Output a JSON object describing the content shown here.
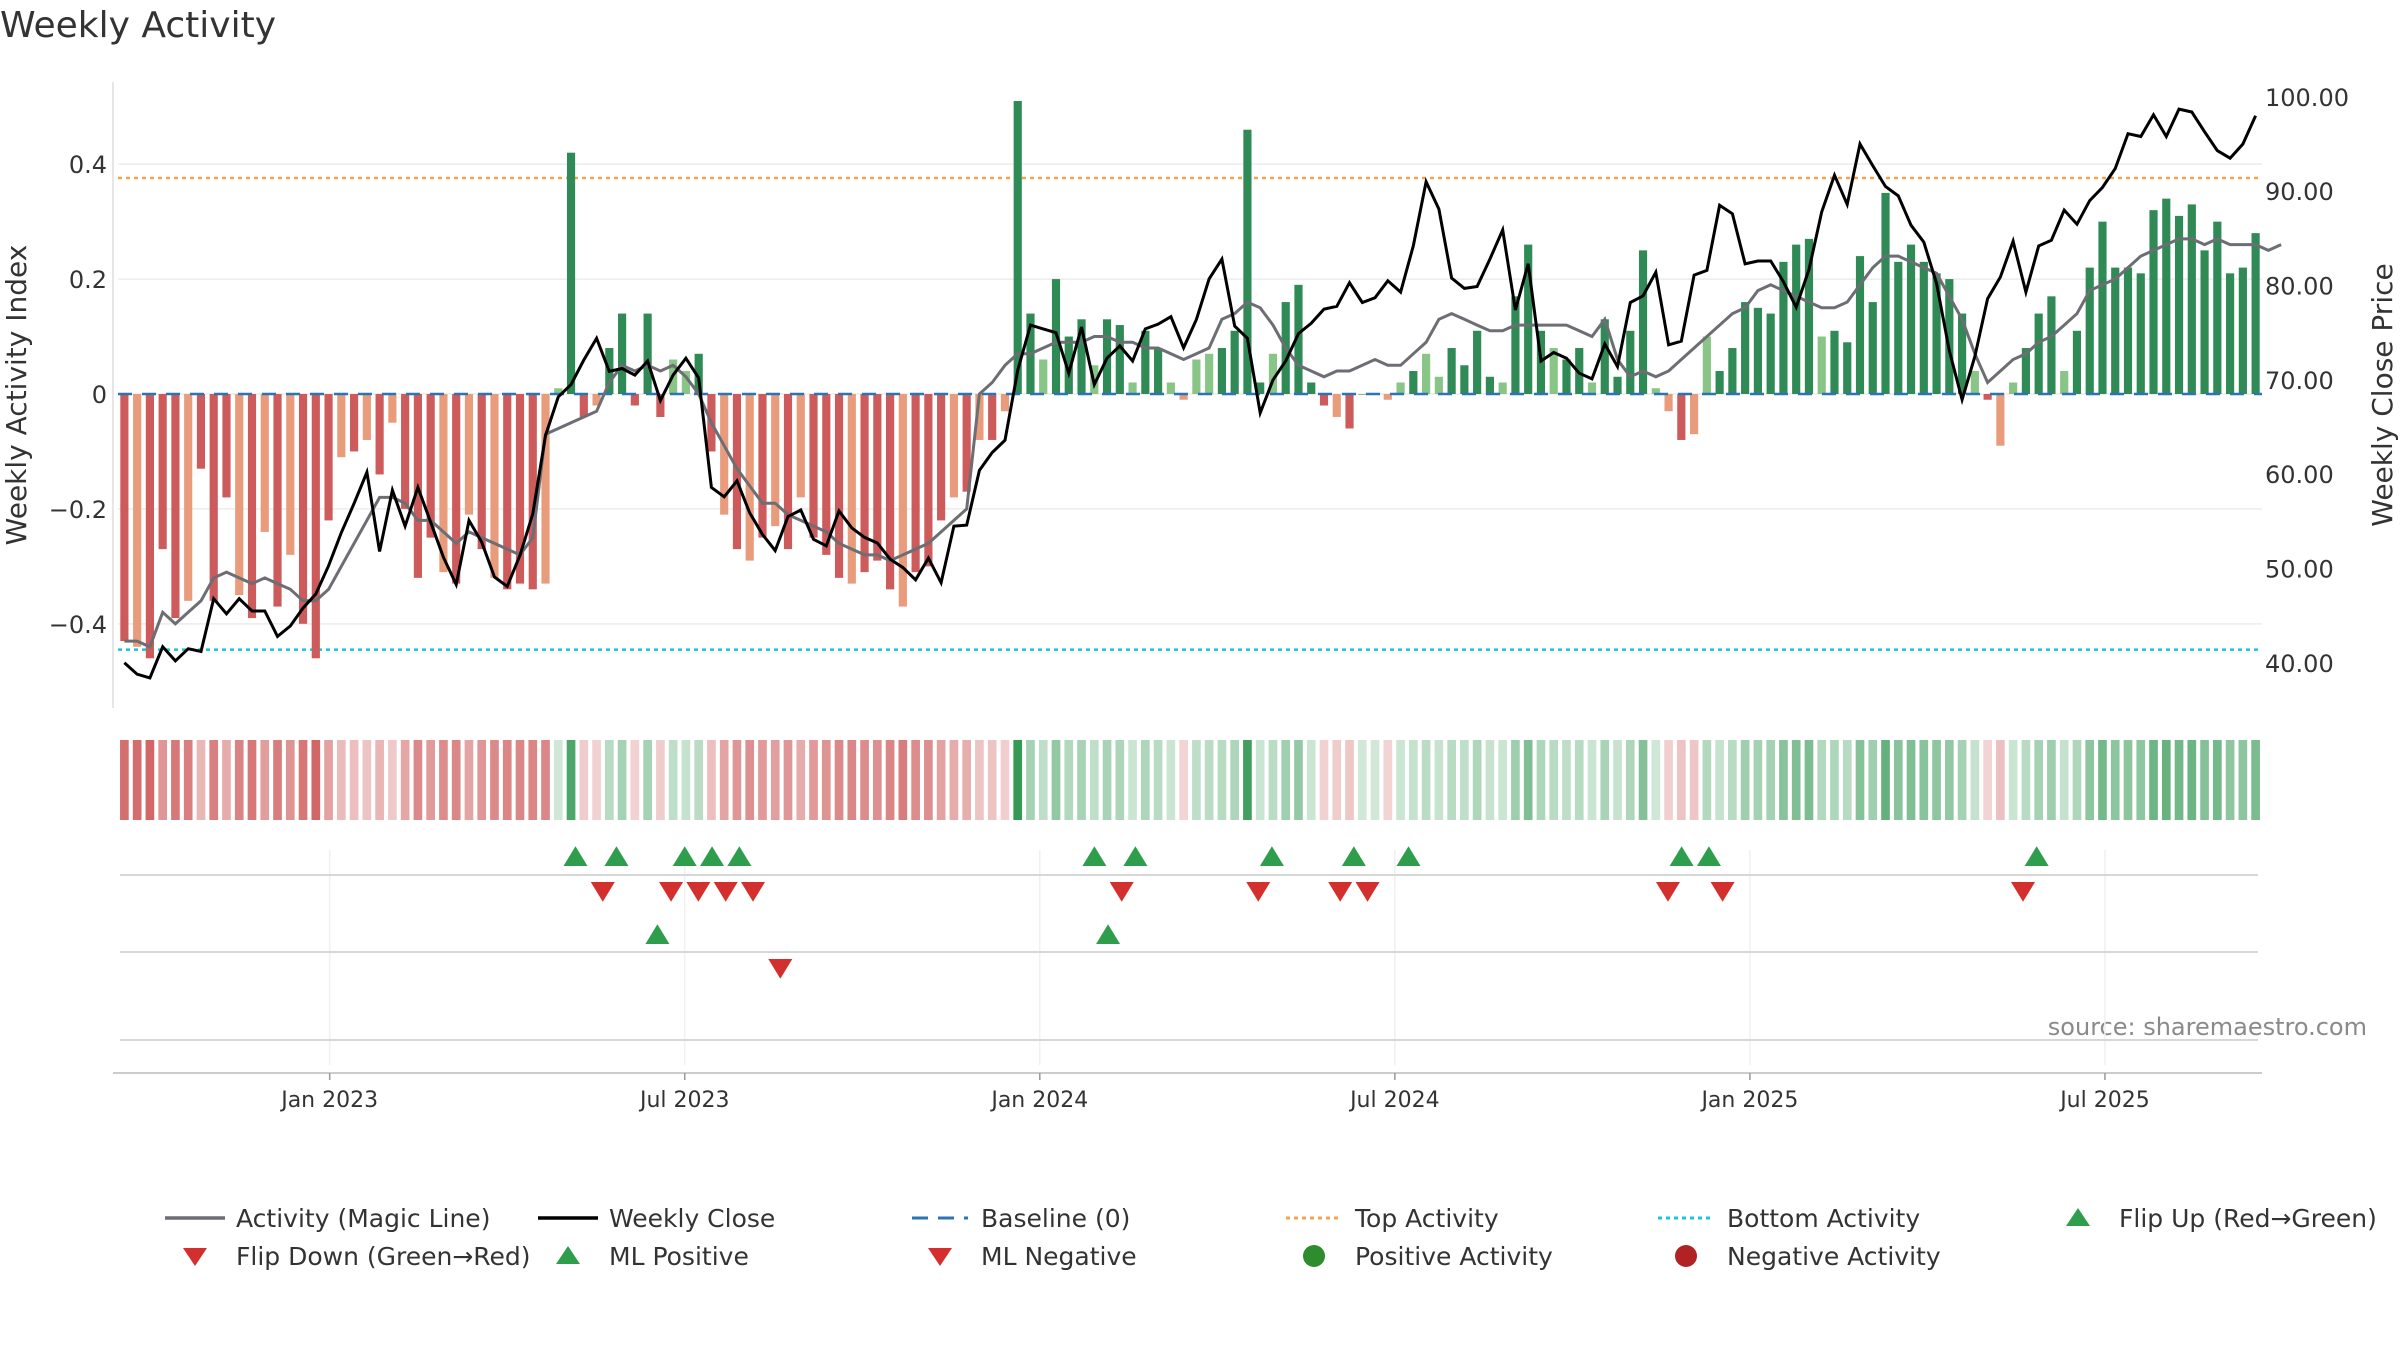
{
  "chart_data": {
    "type": "bar",
    "title": "Weekly Activity",
    "ylabel": "Weekly Activity Index",
    "y2label": "Weekly Close Price",
    "ylim": [
      -0.55,
      0.55
    ],
    "y2lim": [
      35,
      102
    ],
    "yticks": [
      {
        "v": 0.4,
        "t": "0.4"
      },
      {
        "v": 0.2,
        "t": "0.2"
      },
      {
        "v": 0,
        "t": "0"
      },
      {
        "v": -0.2,
        "t": "−0.2"
      },
      {
        "v": -0.4,
        "t": "−0.4"
      }
    ],
    "y2ticks": [
      "100.00",
      "90.00",
      "80.00",
      "70.00",
      "60.00",
      "50.00",
      "40.00"
    ],
    "xticks": [
      {
        "week": 15,
        "label": "Jan 2023"
      },
      {
        "week": 41,
        "label": "Jul 2023"
      },
      {
        "week": 67,
        "label": "Jan 2024"
      },
      {
        "week": 93,
        "label": "Jul 2024"
      },
      {
        "week": 119,
        "label": "Jan 2025"
      },
      {
        "week": 145,
        "label": "Jul 2025"
      }
    ],
    "x_weeks": 157,
    "top_activity": 0.376,
    "bottom_activity": -0.445,
    "baseline": 0,
    "activity": [
      -0.43,
      -0.44,
      -0.46,
      -0.27,
      -0.39,
      -0.36,
      -0.13,
      -0.36,
      -0.18,
      -0.35,
      -0.39,
      -0.24,
      -0.37,
      -0.28,
      -0.4,
      -0.46,
      -0.22,
      -0.11,
      -0.1,
      -0.08,
      -0.14,
      -0.05,
      -0.2,
      -0.32,
      -0.25,
      -0.31,
      -0.33,
      -0.21,
      -0.27,
      -0.32,
      -0.34,
      -0.33,
      -0.34,
      -0.33,
      0.01,
      0.42,
      -0.04,
      -0.02,
      0.08,
      0.14,
      -0.02,
      0.14,
      -0.04,
      0.06,
      0.04,
      0.07,
      -0.1,
      -0.21,
      -0.27,
      -0.29,
      -0.25,
      -0.23,
      -0.27,
      -0.18,
      -0.25,
      -0.28,
      -0.32,
      -0.33,
      -0.31,
      -0.29,
      -0.34,
      -0.37,
      -0.31,
      -0.3,
      -0.22,
      -0.18,
      -0.17,
      -0.08,
      -0.08,
      -0.03,
      0.51,
      0.14,
      0.06,
      0.2,
      0.1,
      0.13,
      0.05,
      0.13,
      0.12,
      0.02,
      0.11,
      0.08,
      0.02,
      -0.01,
      0.06,
      0.07,
      0.08,
      0.11,
      0.46,
      0.02,
      0.07,
      0.16,
      0.19,
      0.02,
      -0.02,
      -0.04,
      -0.06,
      0.0,
      0.0,
      -0.01,
      0.02,
      0.04,
      0.07,
      0.03,
      0.08,
      0.05,
      0.11,
      0.03,
      0.02,
      0.17,
      0.26,
      0.11,
      0.08,
      0.06,
      0.08,
      0.02,
      0.13,
      0.03,
      0.11,
      0.25,
      0.01,
      -0.03,
      -0.08,
      -0.07,
      0.1,
      0.04,
      0.08,
      0.16,
      0.15,
      0.14,
      0.23,
      0.26,
      0.27,
      0.1,
      0.11,
      0.09,
      0.24,
      0.16,
      0.35,
      0.23,
      0.26,
      0.23,
      0.21,
      0.2,
      0.14,
      0.04,
      -0.01,
      -0.09,
      0.02,
      0.08,
      0.14,
      0.17,
      0.04,
      0.11,
      0.22,
      0.3,
      0.22,
      0.22,
      0.21,
      0.32,
      0.34,
      0.31,
      0.33,
      0.25,
      0.3,
      0.21,
      0.22,
      0.28
    ],
    "magic_line": [
      -0.43,
      -0.43,
      -0.44,
      -0.38,
      -0.4,
      -0.38,
      -0.36,
      -0.32,
      -0.31,
      -0.32,
      -0.33,
      -0.32,
      -0.33,
      -0.34,
      -0.36,
      -0.36,
      -0.34,
      -0.3,
      -0.26,
      -0.22,
      -0.18,
      -0.18,
      -0.19,
      -0.22,
      -0.22,
      -0.24,
      -0.26,
      -0.24,
      -0.25,
      -0.26,
      -0.27,
      -0.28,
      -0.25,
      -0.07,
      -0.06,
      -0.05,
      -0.04,
      -0.03,
      0.02,
      0.05,
      0.04,
      0.05,
      0.04,
      0.05,
      0.03,
      0.0,
      -0.05,
      -0.09,
      -0.13,
      -0.16,
      -0.19,
      -0.19,
      -0.21,
      -0.22,
      -0.23,
      -0.24,
      -0.26,
      -0.27,
      -0.28,
      -0.28,
      -0.29,
      -0.28,
      -0.27,
      -0.26,
      -0.24,
      -0.22,
      -0.2,
      0.0,
      0.02,
      0.05,
      0.07,
      0.07,
      0.08,
      0.09,
      0.09,
      0.09,
      0.1,
      0.1,
      0.09,
      0.09,
      0.08,
      0.08,
      0.07,
      0.06,
      0.07,
      0.08,
      0.13,
      0.14,
      0.16,
      0.15,
      0.12,
      0.08,
      0.05,
      0.04,
      0.03,
      0.04,
      0.04,
      0.05,
      0.06,
      0.05,
      0.05,
      0.07,
      0.09,
      0.13,
      0.14,
      0.13,
      0.12,
      0.11,
      0.11,
      0.12,
      0.12,
      0.12,
      0.12,
      0.12,
      0.11,
      0.1,
      0.13,
      0.06,
      0.03,
      0.04,
      0.03,
      0.04,
      0.06,
      0.08,
      0.1,
      0.12,
      0.14,
      0.15,
      0.18,
      0.19,
      0.18,
      0.17,
      0.16,
      0.15,
      0.15,
      0.16,
      0.19,
      0.22,
      0.24,
      0.24,
      0.23,
      0.22,
      0.21,
      0.17,
      0.13,
      0.07,
      0.02,
      0.04,
      0.06,
      0.07,
      0.09,
      0.1,
      0.12,
      0.14,
      0.18,
      0.19,
      0.2,
      0.22,
      0.24,
      0.25,
      0.26,
      0.27,
      0.27,
      0.26,
      0.27,
      0.26,
      0.26,
      0.26,
      0.25,
      0.26
    ],
    "weekly_close": [
      40,
      38.8,
      38.4,
      41.7,
      40.2,
      41.5,
      41.2,
      46.8,
      45.2,
      46.8,
      45.5,
      45.5,
      42.8,
      43.9,
      45.8,
      47.3,
      50.3,
      53.8,
      56.9,
      60.2,
      51.8,
      58.3,
      54.5,
      58.6,
      54.9,
      51.2,
      48.3,
      55.1,
      52.8,
      49.1,
      48.1,
      51.4,
      55.8,
      64.1,
      68.2,
      69.5,
      72.1,
      74.4,
      70.9,
      71.2,
      70.5,
      72.0,
      67.8,
      70.5,
      72.3,
      70.2,
      58.6,
      57.6,
      59.3,
      55.9,
      53.6,
      51.9,
      55.5,
      56.2,
      53.1,
      52.4,
      56.1,
      54.3,
      53.3,
      52.7,
      51.0,
      50.1,
      48.8,
      51.1,
      48.5,
      54.5,
      54.6,
      60.4,
      62.3,
      63.6,
      71.0,
      75.8,
      75.4,
      75.0,
      70.7,
      75.6,
      69.5,
      72.3,
      73.6,
      72.0,
      75.4,
      75.9,
      76.7,
      73.4,
      76.4,
      80.7,
      82.8,
      75.7,
      74.4,
      66.5,
      70.0,
      72.0,
      74.9,
      76.0,
      77.5,
      77.8,
      80.3,
      78.2,
      78.7,
      80.5,
      79.3,
      84.2,
      91.0,
      88.1,
      80.8,
      79.7,
      79.9,
      82.8,
      85.9,
      77.4,
      82.3,
      72.0,
      72.9,
      72.3,
      70.7,
      70.1,
      73.8,
      71.4,
      78.2,
      78.9,
      81.4,
      73.7,
      74.1,
      81.1,
      81.6,
      88.5,
      87.6,
      82.3,
      82.6,
      82.6,
      80.4,
      77.7,
      81.7,
      87.8,
      91.7,
      88.6,
      95.0,
      92.7,
      90.5,
      89.5,
      86.4,
      84.6,
      80.2,
      73.1,
      67.9,
      72.5,
      78.6,
      80.9,
      84.7,
      79.3,
      84.2,
      84.8,
      88.0,
      86.5,
      89.0,
      90.4,
      92.4,
      96.1,
      95.8,
      98.1,
      95.8,
      98.7,
      98.4,
      96.3,
      94.3,
      93.5,
      95.0,
      98.0
    ],
    "flip_up": [
      33,
      36,
      41,
      43,
      45,
      71,
      74,
      84,
      90,
      94,
      114,
      116,
      140
    ],
    "flip_down": [
      35,
      40,
      42,
      44,
      46,
      73,
      83,
      89,
      91,
      113,
      117,
      139
    ],
    "ml_positive": [
      39,
      72
    ],
    "ml_negative": [
      48
    ],
    "legend": [
      {
        "label": "Activity (Magic Line)",
        "symbol": "line",
        "color": "#6c6e73"
      },
      {
        "label": "Weekly Close",
        "symbol": "line",
        "color": "#000000"
      },
      {
        "label": "Baseline (0)",
        "symbol": "dashed",
        "color": "#2d74b5"
      },
      {
        "label": "Top Activity",
        "symbol": "dotted",
        "color": "#f0a64e"
      },
      {
        "label": "Bottom Activity",
        "symbol": "dotted",
        "color": "#19c5d6"
      },
      {
        "label": "Flip Up (Red→Green)",
        "symbol": "triangle-up",
        "color": "#2e9e4d"
      },
      {
        "label": "Flip Down (Green→Red)",
        "symbol": "triangle-down",
        "color": "#d32f2f"
      },
      {
        "label": "ML Positive",
        "symbol": "triangle-up",
        "color": "#2e9e4d"
      },
      {
        "label": "ML Negative",
        "symbol": "triangle-down",
        "color": "#d32f2f"
      },
      {
        "label": "Positive Activity",
        "symbol": "circle",
        "color": "#2e8b2e"
      },
      {
        "label": "Negative Activity",
        "symbol": "circle",
        "color": "#b22222"
      }
    ],
    "source": "source: sharemaestro.com",
    "colors": {
      "pos_strong": "#2f8a55",
      "pos_light": "#88c586",
      "neg_strong": "#cd5b5b",
      "neg_light": "#e99c7c",
      "magic_line": "#6c6e73",
      "close": "#000000",
      "baseline": "#2d74b5",
      "top": "#f0a64e",
      "bottom": "#19c5d6",
      "up_marker": "#2e9e4d",
      "down_marker": "#d32f2f"
    }
  }
}
